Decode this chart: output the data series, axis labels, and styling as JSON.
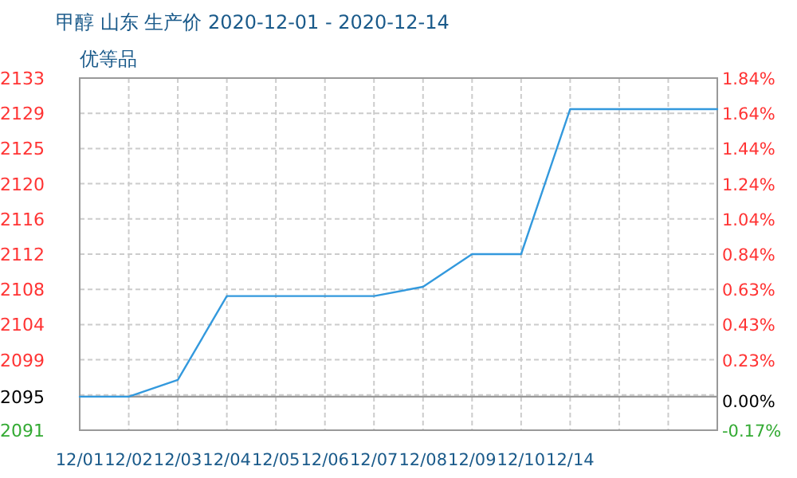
{
  "chart_data": {
    "type": "line",
    "title": "甲醇 山东 生产价 2020-12-01 - 2020-12-14",
    "subtitle": "优等品",
    "categories": [
      "12/01",
      "12/02",
      "12/03",
      "12/04",
      "12/05",
      "12/06",
      "12/07",
      "12/08",
      "12/09",
      "12/10",
      "12/14",
      null,
      null,
      null
    ],
    "series": [
      {
        "color": "#3399dd",
        "values": [
          2095,
          2095,
          2097,
          2107,
          2107,
          2107,
          2107,
          2108.1,
          2112,
          2112,
          2129.3,
          2129.3,
          2129.3,
          2129.3
        ]
      }
    ],
    "ylim": [
      2091,
      2133
    ],
    "yticks": [
      2091,
      2095,
      {
        "value": 2095.2,
        "label": null
      },
      {
        "value": 2099.4,
        "label": "2099"
      },
      {
        "value": 2103.6,
        "label": "2104"
      },
      {
        "value": 2107.8,
        "label": "2108"
      },
      2112,
      {
        "value": 2116.2,
        "label": "2116"
      },
      {
        "value": 2120.4,
        "label": "2120"
      },
      {
        "value": 2124.6,
        "label": "2125"
      },
      {
        "value": 2128.8,
        "label": "2129"
      },
      2133
    ],
    "y2lim": [
      -0.17,
      1.84
    ],
    "y2ticks": [
      {
        "value": -0.17,
        "label": "-0.17%"
      },
      {
        "value": 0,
        "label": "0.00%"
      },
      {
        "value": 0.232,
        "label": "0.23%"
      },
      {
        "value": 0.433,
        "label": "0.43%"
      },
      {
        "value": 0.634,
        "label": "0.63%"
      },
      {
        "value": 0.835,
        "label": "0.84%"
      },
      {
        "value": 1.036,
        "label": "1.04%"
      },
      {
        "value": 1.237,
        "label": "1.24%"
      },
      {
        "value": 1.438,
        "label": "1.44%"
      },
      {
        "value": 1.639,
        "label": "1.64%"
      },
      {
        "value": 1.84,
        "label": "1.84%"
      }
    ],
    "ref_lines": [
      {
        "axis": "y",
        "value": 2095,
        "color": "#999999"
      }
    ],
    "grid": true,
    "marker": "none",
    "line_style": "solid"
  }
}
